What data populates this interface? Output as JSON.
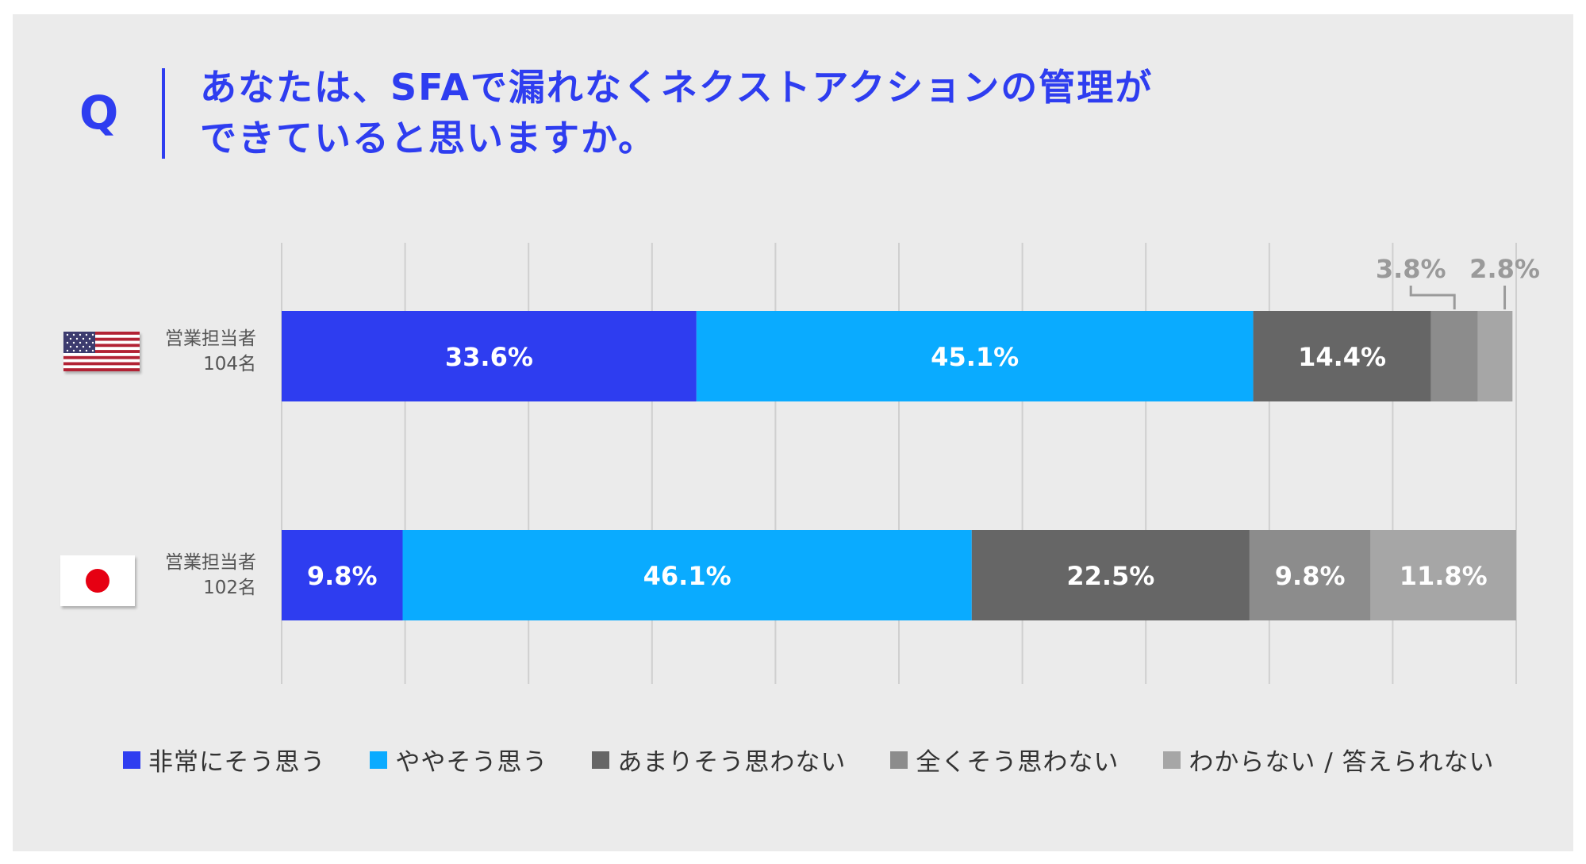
{
  "question": {
    "mark": "Q",
    "title_lines": [
      "あなたは、SFAで漏れなくネクストアクションの管理が",
      "できていると思いますか。"
    ]
  },
  "colors": {
    "accent": "#2e3df0",
    "series": [
      "#2e3df0",
      "#0aabff",
      "#666666",
      "#8c8c8c",
      "#a6a6a6"
    ]
  },
  "rows": [
    {
      "flag": "us-flag-icon",
      "label": "営業担当者",
      "count": "104名"
    },
    {
      "flag": "jp-flag-icon",
      "label": "営業担当者",
      "count": "102名"
    }
  ],
  "chart_data": {
    "type": "bar",
    "orientation": "horizontal",
    "stacked": true,
    "categories": [
      "営業担当者 104名",
      "営業担当者 102名"
    ],
    "series": [
      {
        "name": "非常にそう思う",
        "values": [
          33.6,
          9.8
        ]
      },
      {
        "name": "ややそう思う",
        "values": [
          45.1,
          46.1
        ]
      },
      {
        "name": "あまりそう思わない",
        "values": [
          14.4,
          22.5
        ]
      },
      {
        "name": "全くそう思わない",
        "values": [
          3.8,
          9.8
        ]
      },
      {
        "name": "わからない / 答えられない",
        "values": [
          2.8,
          11.8
        ]
      }
    ],
    "value_labels": [
      [
        "33.6%",
        "45.1%",
        "14.4%",
        "3.8%",
        "2.8%"
      ],
      [
        "9.8%",
        "46.1%",
        "22.5%",
        "9.8%",
        "11.8%"
      ]
    ],
    "xlim": [
      0,
      100
    ],
    "grid": true,
    "legend": "bottom"
  }
}
